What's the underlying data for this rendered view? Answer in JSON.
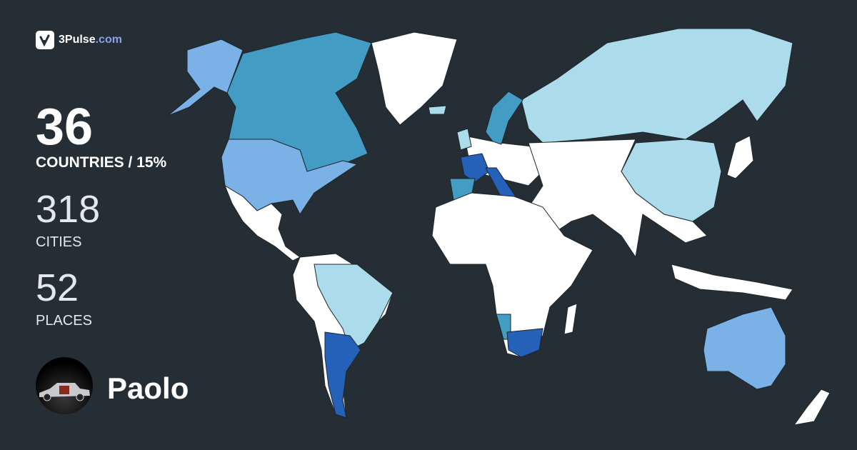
{
  "brand": {
    "name": "3Pulse",
    "domain": ".com"
  },
  "stats": {
    "countries_value": "36",
    "countries_label": "COUNTRIES / 15%",
    "cities_value": "318",
    "cities_label": "CITIES",
    "places_value": "52",
    "places_label": "PLACES"
  },
  "user": {
    "name": "Paolo"
  },
  "map_colors": {
    "background": "#252e35",
    "unvisited": "#ffffff",
    "level_light": "#acdcec",
    "level_pale": "#7ab2e8",
    "level_mid": "#429cc3",
    "level_dark": "#2561b9",
    "border": "#1d252b"
  }
}
